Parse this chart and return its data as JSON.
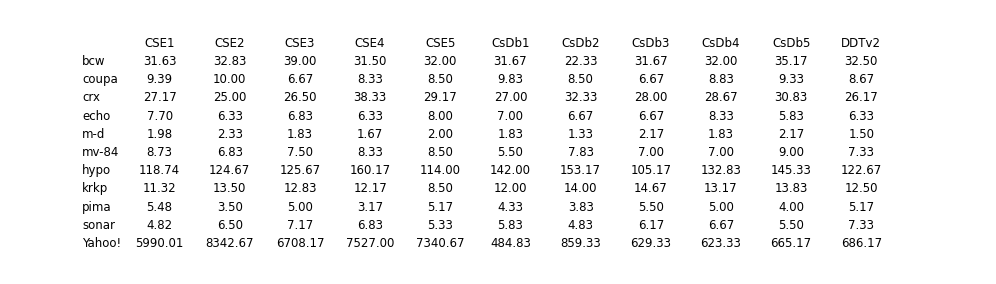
{
  "columns": [
    "CSE1",
    "CSE2",
    "CSE3",
    "CSE4",
    "CSE5",
    "CsDb1",
    "CsDb2",
    "CsDb3",
    "CsDb4",
    "CsDb5",
    "DDTv2"
  ],
  "rows": [
    {
      "label": "bcw",
      "values": [
        31.63,
        32.83,
        39.0,
        31.5,
        32.0,
        31.67,
        22.33,
        31.67,
        32.0,
        35.17,
        32.5
      ]
    },
    {
      "label": "coupa",
      "values": [
        9.39,
        10.0,
        6.67,
        8.33,
        8.5,
        9.83,
        8.5,
        6.67,
        8.83,
        9.33,
        8.67
      ]
    },
    {
      "label": "crx",
      "values": [
        27.17,
        25.0,
        26.5,
        38.33,
        29.17,
        27.0,
        32.33,
        28.0,
        28.67,
        30.83,
        26.17
      ]
    },
    {
      "label": "echo",
      "values": [
        7.7,
        6.33,
        6.83,
        6.33,
        8.0,
        7.0,
        6.67,
        6.67,
        8.33,
        5.83,
        6.33
      ]
    },
    {
      "label": "m-d",
      "values": [
        1.98,
        2.33,
        1.83,
        1.67,
        2.0,
        1.83,
        1.33,
        2.17,
        1.83,
        2.17,
        1.5
      ]
    },
    {
      "label": "mv-84",
      "values": [
        8.73,
        6.83,
        7.5,
        8.33,
        8.5,
        5.5,
        7.83,
        7.0,
        7.0,
        9.0,
        7.33
      ]
    },
    {
      "label": "hypo",
      "values": [
        118.74,
        124.67,
        125.67,
        160.17,
        114.0,
        142.0,
        153.17,
        105.17,
        132.83,
        145.33,
        122.67
      ]
    },
    {
      "label": "krkp",
      "values": [
        11.32,
        13.5,
        12.83,
        12.17,
        8.5,
        12.0,
        14.0,
        14.67,
        13.17,
        13.83,
        12.5
      ]
    },
    {
      "label": "pima",
      "values": [
        5.48,
        3.5,
        5.0,
        3.17,
        5.17,
        4.33,
        3.83,
        5.5,
        5.0,
        4.0,
        5.17
      ]
    },
    {
      "label": "sonar",
      "values": [
        4.82,
        6.5,
        7.17,
        6.83,
        5.33,
        5.83,
        4.83,
        6.17,
        6.67,
        5.5,
        7.33
      ]
    },
    {
      "label": "Yahoo!",
      "values": [
        5990.01,
        8342.67,
        6708.17,
        7527.0,
        7340.67,
        484.83,
        859.33,
        629.33,
        623.33,
        665.17,
        686.17
      ]
    }
  ],
  "background_color": "#ffffff",
  "text_color": "#000000",
  "font_size": 8.5,
  "header_font_size": 8.5,
  "row_label_font_size": 8.5
}
